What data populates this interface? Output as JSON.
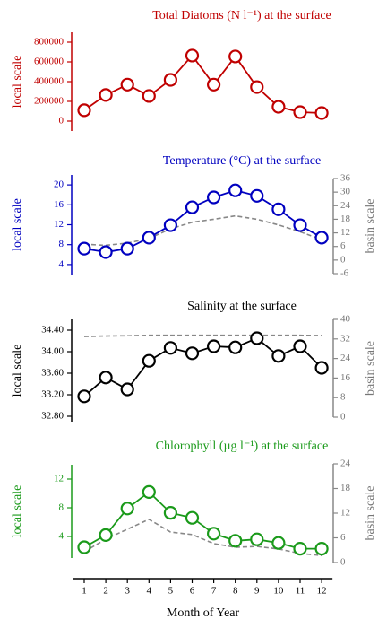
{
  "chart_data": [
    {
      "type": "line",
      "title": "Total Diatoms (N l⁻¹) at the surface",
      "ylabel": "local scale",
      "title_color": "#c00000",
      "x": [
        1,
        2,
        3,
        4,
        5,
        6,
        7,
        8,
        9,
        10,
        11,
        12
      ],
      "xlim": [
        0.5,
        12.5
      ],
      "ylim": [
        -100000,
        900000
      ],
      "yticks": [
        0,
        200000,
        400000,
        600000,
        800000
      ],
      "series": [
        {
          "color": "#c00000",
          "linestyle": "solid",
          "marker": "circle",
          "values": [
            110000,
            265000,
            370000,
            255000,
            418000,
            664000,
            370000,
            655000,
            345000,
            145000,
            91000,
            82000
          ]
        }
      ]
    },
    {
      "type": "line",
      "title": "Temperature (°C) at the surface",
      "ylabel": "local scale",
      "y2label": "basin scale",
      "title_color": "#0000c0",
      "x": [
        1,
        2,
        3,
        4,
        5,
        6,
        7,
        8,
        9,
        10,
        11,
        12
      ],
      "xlim": [
        0.5,
        12.5
      ],
      "ylim": [
        2,
        22
      ],
      "yticks": [
        4,
        8,
        12,
        16,
        20
      ],
      "y2lim": [
        -6,
        36
      ],
      "y2ticks": [
        -6,
        0,
        6,
        12,
        18,
        24,
        30,
        36
      ],
      "series": [
        {
          "color": "#0000c0",
          "linestyle": "solid",
          "marker": "circle",
          "values": [
            7.2,
            6.5,
            7.2,
            9.4,
            11.9,
            15.5,
            17.5,
            18.9,
            17.8,
            15.1,
            11.9,
            9.4
          ]
        },
        {
          "color": "#888888",
          "linestyle": "dashed",
          "marker": "none",
          "axis": "y2",
          "values": [
            7,
            6.5,
            7.5,
            9.5,
            13.8,
            16.7,
            18,
            19.5,
            18,
            15.5,
            12.5,
            9
          ]
        }
      ]
    },
    {
      "type": "line",
      "title": "Salinity at the surface",
      "ylabel": "local scale",
      "y2label": "basin scale",
      "title_color": "#000000",
      "x": [
        1,
        2,
        3,
        4,
        5,
        6,
        7,
        8,
        9,
        10,
        11,
        12
      ],
      "xlim": [
        0.5,
        12.5
      ],
      "ylim": [
        32.7,
        34.6
      ],
      "yticks": [
        {
          "value": 32.8,
          "label": "32.80"
        },
        {
          "value": 33.2,
          "label": "33.20"
        },
        {
          "value": 33.6,
          "label": "33.60"
        },
        {
          "value": 34.0,
          "label": "34.00"
        },
        {
          "value": 34.4,
          "label": "34.40"
        }
      ],
      "y2lim": [
        0,
        40
      ],
      "y2ticks": [
        0,
        8,
        16,
        24,
        32,
        40
      ],
      "series": [
        {
          "color": "#000000",
          "linestyle": "solid",
          "marker": "circle",
          "values": [
            33.17,
            33.52,
            33.3,
            33.83,
            34.07,
            33.97,
            34.1,
            34.08,
            34.25,
            33.92,
            34.1,
            33.7
          ]
        },
        {
          "color": "#888888",
          "linestyle": "dashed",
          "marker": "none",
          "axis": "y2",
          "values": [
            33,
            33.2,
            33.3,
            33.5,
            33.5,
            33.5,
            33.5,
            33.5,
            33.5,
            33.5,
            33.5,
            33.4
          ]
        }
      ]
    },
    {
      "type": "line",
      "title": "Chlorophyll (µg l⁻¹) at the surface",
      "ylabel": "local scale",
      "y2label": "basin scale",
      "title_color": "#1a9a1a",
      "x": [
        1,
        2,
        3,
        4,
        5,
        6,
        7,
        8,
        9,
        10,
        11,
        12
      ],
      "xlim": [
        0.5,
        12.5
      ],
      "xticks": [
        1,
        2,
        3,
        4,
        5,
        6,
        7,
        8,
        9,
        10,
        11,
        12
      ],
      "xlabel": "Month of Year",
      "ylim": [
        1,
        14
      ],
      "yticks": [
        4,
        8,
        12
      ],
      "y2lim": [
        0,
        24
      ],
      "y2ticks": [
        0,
        6,
        12,
        18,
        24
      ],
      "series": [
        {
          "color": "#1a9a1a",
          "linestyle": "solid",
          "marker": "circle",
          "values": [
            2.5,
            4.2,
            7.9,
            10.2,
            7.3,
            6.6,
            4.4,
            3.4,
            3.6,
            3.1,
            2.3,
            2.3
          ]
        },
        {
          "color": "#888888",
          "linestyle": "dashed",
          "marker": "none",
          "axis": "y2",
          "values": [
            2.6,
            5.7,
            8.1,
            10.5,
            7.4,
            6.8,
            4.6,
            3.7,
            3.9,
            3.3,
            2.2,
            1.7
          ]
        }
      ]
    }
  ]
}
